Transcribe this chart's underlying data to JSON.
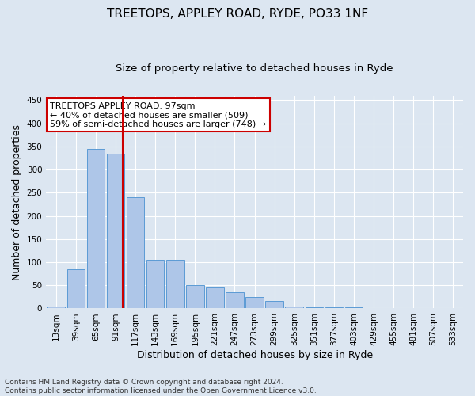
{
  "title": "TREETOPS, APPLEY ROAD, RYDE, PO33 1NF",
  "subtitle": "Size of property relative to detached houses in Ryde",
  "xlabel": "Distribution of detached houses by size in Ryde",
  "ylabel": "Number of detached properties",
  "footnote": "Contains HM Land Registry data © Crown copyright and database right 2024.\nContains public sector information licensed under the Open Government Licence v3.0.",
  "bar_labels": [
    "13sqm",
    "39sqm",
    "65sqm",
    "91sqm",
    "117sqm",
    "143sqm",
    "169sqm",
    "195sqm",
    "221sqm",
    "247sqm",
    "273sqm",
    "299sqm",
    "325sqm",
    "351sqm",
    "377sqm",
    "403sqm",
    "429sqm",
    "455sqm",
    "481sqm",
    "507sqm",
    "533sqm"
  ],
  "bar_values": [
    5,
    85,
    345,
    335,
    240,
    105,
    105,
    50,
    45,
    35,
    25,
    17,
    5,
    3,
    3,
    2,
    1,
    1,
    0,
    1,
    0
  ],
  "bar_color": "#aec6e8",
  "bar_edge_color": "#5b9bd5",
  "vline_x": 3.35,
  "vline_color": "#cc0000",
  "annotation_text": "TREETOPS APPLEY ROAD: 97sqm\n← 40% of detached houses are smaller (509)\n59% of semi-detached houses are larger (748) →",
  "annotation_box_color": "#ffffff",
  "annotation_box_edge": "#cc0000",
  "ylim": [
    0,
    460
  ],
  "yticks": [
    0,
    50,
    100,
    150,
    200,
    250,
    300,
    350,
    400,
    450
  ],
  "background_color": "#dce6f1",
  "plot_background": "#dce6f1",
  "grid_color": "#ffffff",
  "title_fontsize": 11,
  "subtitle_fontsize": 9.5,
  "axis_label_fontsize": 9,
  "tick_fontsize": 7.5,
  "annotation_fontsize": 8,
  "footnote_fontsize": 6.5
}
